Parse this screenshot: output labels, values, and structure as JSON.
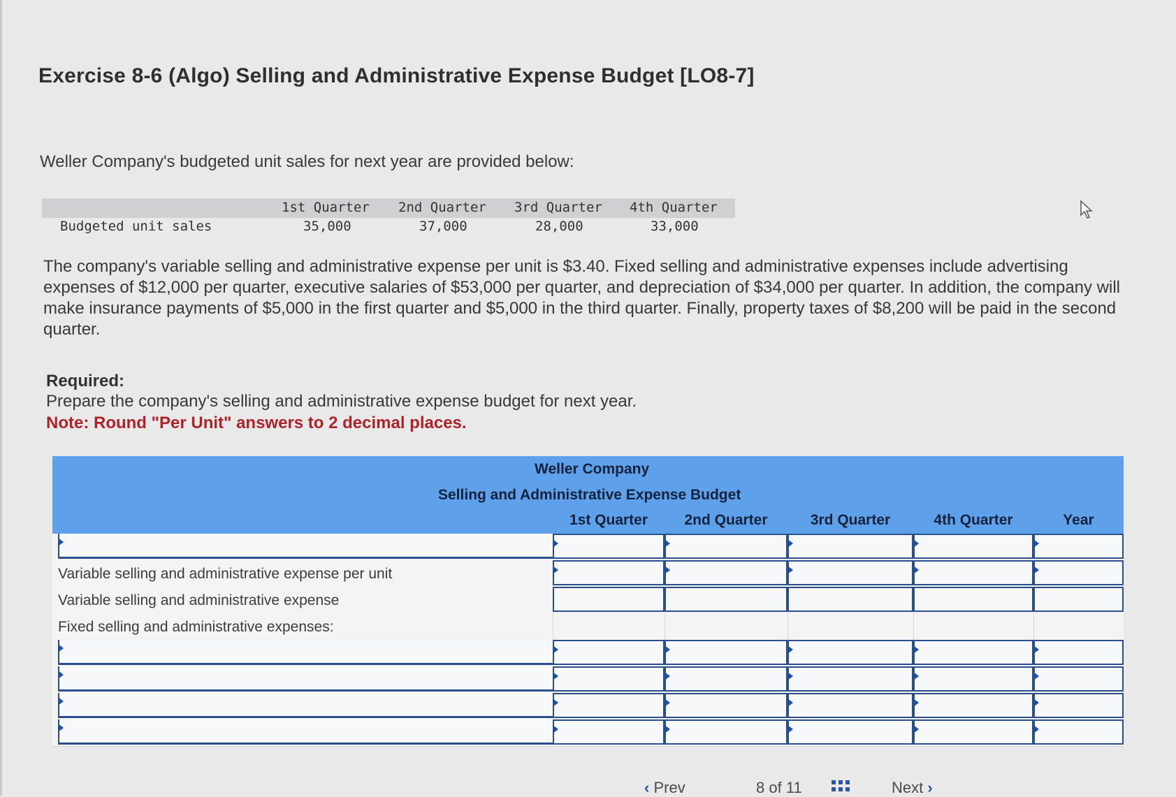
{
  "title": "Exercise 8-6 (Algo) Selling and Administrative Expense Budget [LO8-7]",
  "intro": "Weller Company's budgeted unit sales for next year are provided below:",
  "given_table": {
    "headers": [
      "1st Quarter",
      "2nd Quarter",
      "3rd Quarter",
      "4th Quarter"
    ],
    "row_label": "Budgeted unit sales",
    "values": [
      "35,000",
      "37,000",
      "28,000",
      "33,000"
    ]
  },
  "paragraph": "The company's variable selling and administrative expense per unit is $3.40. Fixed selling and administrative expenses include advertising expenses of $12,000 per quarter, executive salaries of $53,000 per quarter, and depreciation of $34,000 per quarter. In addition, the company will make insurance payments of $5,000 in the first quarter and $5,000 in the third quarter. Finally, property taxes of $8,200 will be paid in the second quarter.",
  "required": {
    "label": "Required:",
    "text": "Prepare the company's selling and administrative expense budget for next year.",
    "note": "Note: Round \"Per Unit\" answers to 2 decimal places."
  },
  "budget": {
    "company": "Weller Company",
    "title": "Selling and Administrative Expense Budget",
    "columns": [
      "1st Quarter",
      "2nd Quarter",
      "3rd Quarter",
      "4th Quarter",
      "Year"
    ],
    "rows": [
      {
        "label": "",
        "type": "dropdown"
      },
      {
        "label": "Variable selling and administrative expense per unit",
        "type": "static"
      },
      {
        "label": "Variable selling and administrative expense",
        "type": "static"
      },
      {
        "label": "Fixed selling and administrative expenses:",
        "type": "section"
      },
      {
        "label": "",
        "type": "dropdown"
      },
      {
        "label": "",
        "type": "dropdown"
      },
      {
        "label": "",
        "type": "dropdown"
      },
      {
        "label": "",
        "type": "dropdown"
      }
    ]
  },
  "nav": {
    "prev_label": "Prev",
    "page_current": "8",
    "page_of": "of",
    "page_total": "11",
    "next_label": "Next"
  },
  "colors": {
    "header_blue": "#5ea0ea",
    "input_border": "#2b4f8c",
    "note_red": "#b0222a"
  }
}
